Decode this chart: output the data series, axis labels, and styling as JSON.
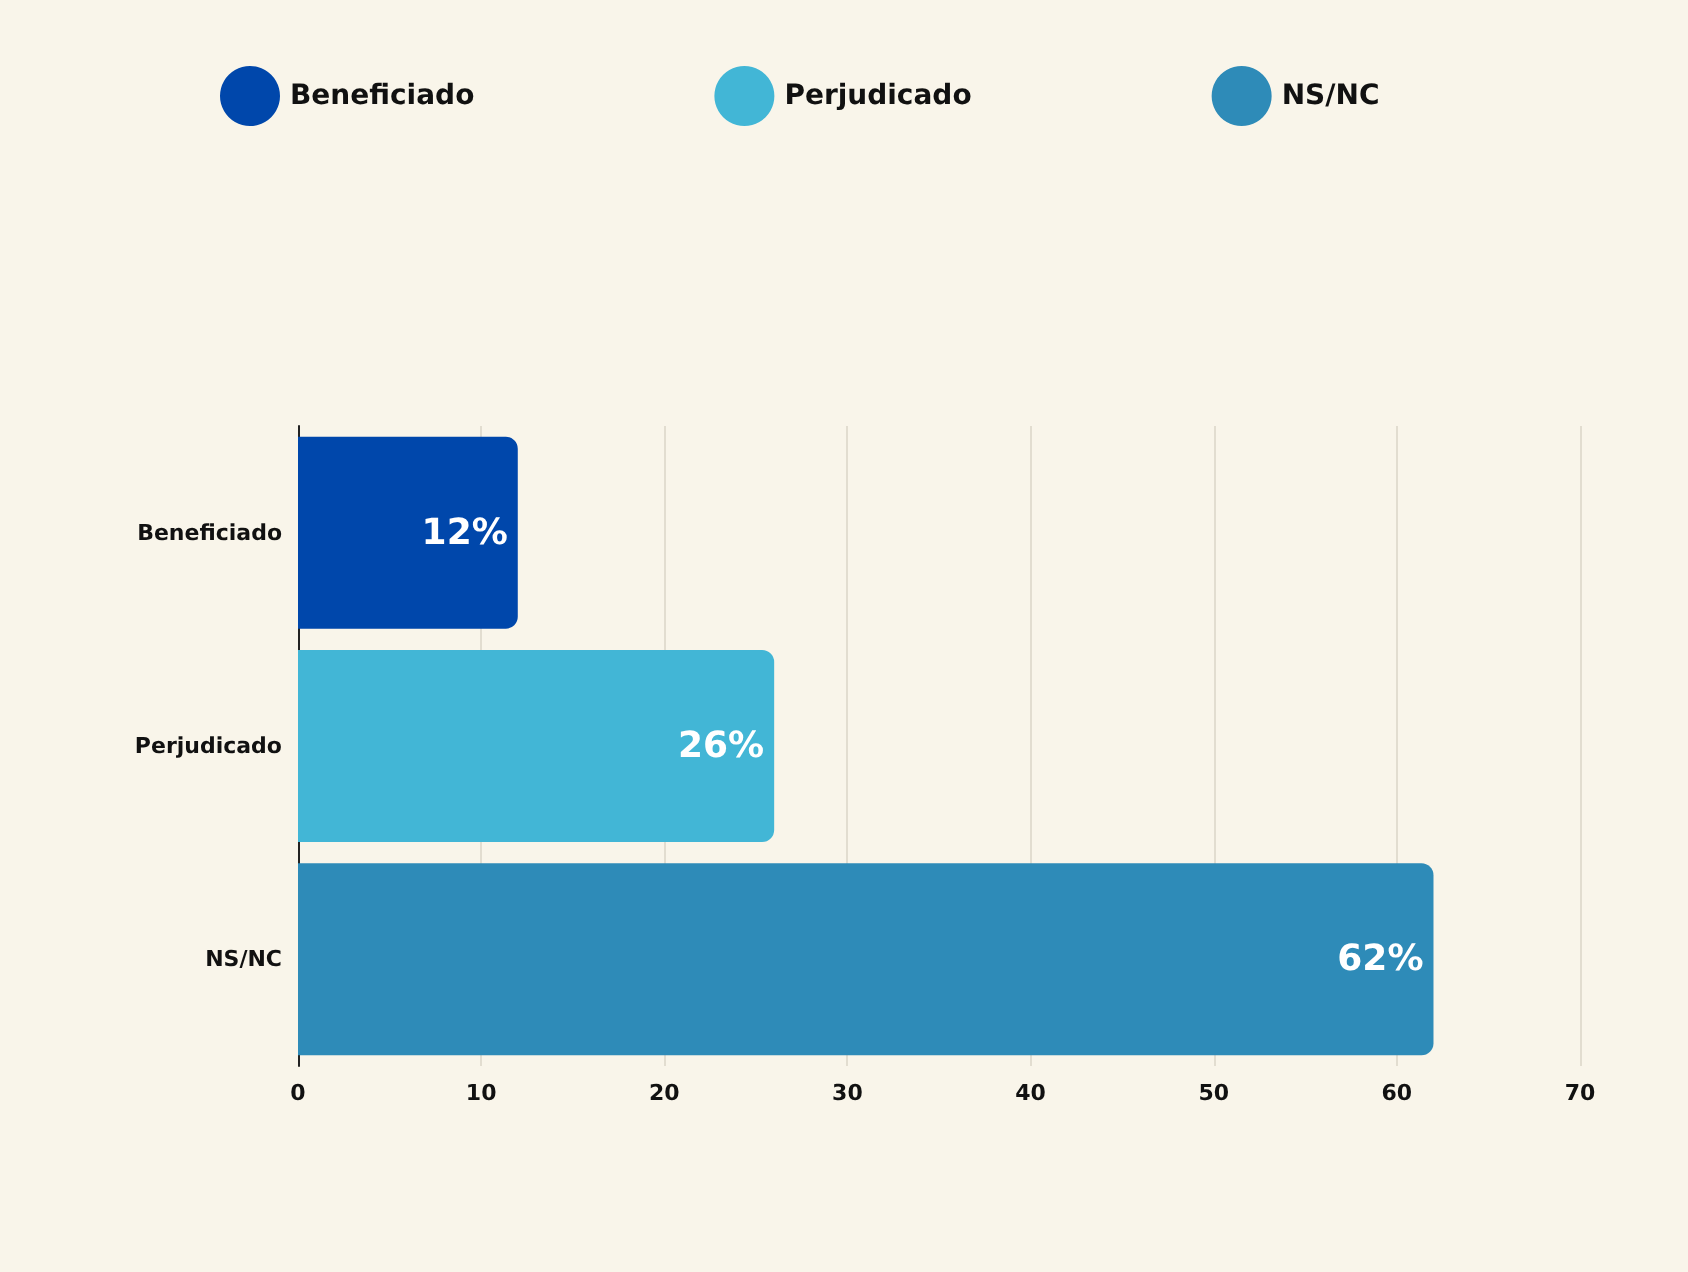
{
  "chart_data": {
    "type": "bar",
    "orientation": "horizontal",
    "stacked": true,
    "categories": [
      "Beneficiado",
      "Perjudicado",
      "NS/NC"
    ],
    "series": [
      {
        "name": "Beneficiado",
        "color": "#0047ab",
        "values": [
          12,
          null,
          null
        ],
        "value_labels": [
          "12%",
          null,
          null
        ]
      },
      {
        "name": "Perjudicado",
        "color": "#42b6d6",
        "values": [
          null,
          26,
          null
        ],
        "value_labels": [
          null,
          "26%",
          null
        ]
      },
      {
        "name": "NS/NC",
        "color": "#2e8bb8",
        "values": [
          null,
          null,
          62
        ],
        "value_labels": [
          null,
          null,
          "62%"
        ]
      }
    ],
    "xlim": [
      0,
      70
    ],
    "xticks": [
      0,
      10,
      20,
      30,
      40,
      50,
      60,
      70
    ],
    "grid": "x",
    "legend": "top"
  }
}
